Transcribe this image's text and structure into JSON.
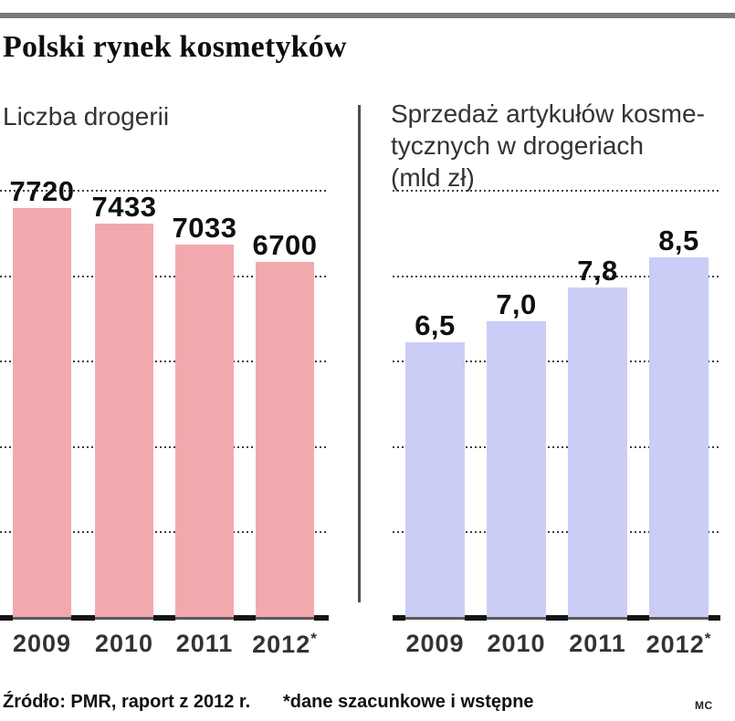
{
  "title": "Polski rynek kosmetyków",
  "chart_data": [
    {
      "type": "bar",
      "title": "Liczba drogerii",
      "categories": [
        "2009",
        "2010",
        "2011",
        "2012*"
      ],
      "values": [
        7720,
        7433,
        7033,
        6700
      ],
      "value_labels": [
        "7720",
        "7433",
        "7033",
        "6700"
      ],
      "bar_color": "#f2a9ae",
      "ylim": [
        0,
        7720
      ],
      "grid": "dotted-horizontal",
      "legend": "none"
    },
    {
      "type": "bar",
      "title": "Sprzedaż artykułów kosme-\ntycznych  w drogeriach\n(mld zł)",
      "categories": [
        "2009",
        "2010",
        "2011",
        "2012*"
      ],
      "values": [
        6.5,
        7.0,
        7.8,
        8.5
      ],
      "value_labels": [
        "6,5",
        "7,0",
        "7,8",
        "8,5"
      ],
      "bar_color": "#cbcdf6",
      "ylim": [
        0,
        8.5
      ],
      "grid": "dotted-horizontal",
      "legend": "none"
    }
  ],
  "footer": {
    "source": "Źródło: PMR, raport z 2012 r.",
    "note": "*dane szacunkowe i wstępne",
    "credit": "MC"
  }
}
